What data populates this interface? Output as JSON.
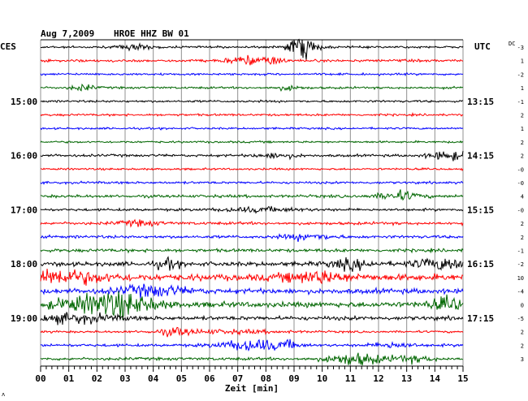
{
  "header": {
    "date": "Aug 7,2009",
    "station": "HROE HHZ BW 01"
  },
  "left_timezone": "CES",
  "right_timezone": "UTC",
  "dc_label": "DC",
  "corner_mark": "ʌ",
  "chart_data": {
    "type": "line",
    "title": "Aug 7,2009   HROE HHZ BW 01",
    "xlabel": "Zeit [min]",
    "ylabel": "",
    "xlim": [
      0,
      15
    ],
    "x_ticks": [
      "00",
      "01",
      "02",
      "03",
      "04",
      "05",
      "06",
      "07",
      "08",
      "09",
      "10",
      "11",
      "12",
      "13",
      "14",
      "15"
    ],
    "grid": true,
    "trace_colors": [
      "#000000",
      "#ff0000",
      "#0000ff",
      "#006600"
    ],
    "left_time_labels": [
      {
        "trace": 4,
        "label": "15:00"
      },
      {
        "trace": 8,
        "label": "16:00"
      },
      {
        "trace": 12,
        "label": "17:00"
      },
      {
        "trace": 16,
        "label": "18:00"
      },
      {
        "trace": 20,
        "label": "19:00"
      }
    ],
    "right_time_labels": [
      {
        "trace": 4,
        "label": "13:15"
      },
      {
        "trace": 8,
        "label": "14:15"
      },
      {
        "trace": 12,
        "label": "15:15"
      },
      {
        "trace": 16,
        "label": "16:15"
      },
      {
        "trace": 20,
        "label": "17:15"
      }
    ],
    "dc_offsets": [
      "-3",
      "1",
      "-2",
      "1",
      "-1",
      "2",
      "1",
      "2",
      "2",
      "-0",
      "-0",
      "4",
      "-0",
      "2",
      "2",
      "-1",
      "-2",
      "10",
      "-4",
      "0",
      "-5",
      "2",
      "2",
      "3"
    ],
    "traces": [
      {
        "amp": 1.2,
        "events": [
          [
            3.4,
            2.5,
            0.4
          ],
          [
            9.3,
            10,
            0.35
          ]
        ]
      },
      {
        "amp": 1.4,
        "events": [
          [
            7.3,
            3,
            0.5
          ],
          [
            8.3,
            2.5,
            0.3
          ]
        ]
      },
      {
        "amp": 1.2,
        "events": []
      },
      {
        "amp": 1.2,
        "events": [
          [
            1.5,
            2.5,
            0.3
          ],
          [
            8.8,
            2,
            0.3
          ]
        ]
      },
      {
        "amp": 1.2,
        "events": []
      },
      {
        "amp": 1.2,
        "events": []
      },
      {
        "amp": 1.1,
        "events": []
      },
      {
        "amp": 1.1,
        "events": []
      },
      {
        "amp": 1.4,
        "events": [
          [
            8.4,
            1.8,
            0.5
          ],
          [
            14.5,
            3.5,
            0.5
          ]
        ]
      },
      {
        "amp": 1.1,
        "events": []
      },
      {
        "amp": 1.3,
        "events": []
      },
      {
        "amp": 1.6,
        "events": [
          [
            12.7,
            3,
            0.5
          ]
        ]
      },
      {
        "amp": 1.4,
        "events": [
          [
            7.8,
            1.6,
            1
          ]
        ]
      },
      {
        "amp": 1.6,
        "events": [
          [
            3.5,
            1.6,
            0.5
          ]
        ]
      },
      {
        "amp": 1.6,
        "events": [
          [
            9.5,
            2,
            0.6
          ]
        ]
      },
      {
        "amp": 1.8,
        "events": []
      },
      {
        "amp": 2.4,
        "events": [
          [
            4.5,
            2,
            0.3
          ],
          [
            11,
            2,
            0.5
          ],
          [
            14.4,
            2.5,
            0.8
          ]
        ]
      },
      {
        "amp": 3.6,
        "events": [
          [
            0.5,
            2,
            1.2
          ],
          [
            9.8,
            1.5,
            0.8
          ]
        ]
      },
      {
        "amp": 2.8,
        "events": [
          [
            4,
            2,
            0.8
          ]
        ]
      },
      {
        "amp": 3.0,
        "events": [
          [
            1.8,
            2.5,
            1
          ],
          [
            3,
            2.8,
            0.8
          ],
          [
            14.5,
            2,
            0.5
          ]
        ]
      },
      {
        "amp": 2.2,
        "events": [
          [
            1.2,
            2,
            1
          ]
        ]
      },
      {
        "amp": 1.2,
        "events": [
          [
            4.8,
            3,
            0.4
          ],
          [
            6.5,
            1.5,
            1.5
          ]
        ]
      },
      {
        "amp": 1.5,
        "events": [
          [
            7.5,
            4,
            0.8
          ],
          [
            12.5,
            2,
            0.5
          ],
          [
            8.8,
            2,
            0.3
          ]
        ]
      },
      {
        "amp": 1.6,
        "events": [
          [
            11.2,
            4,
            0.7
          ],
          [
            13.2,
            2,
            0.5
          ]
        ]
      }
    ]
  }
}
